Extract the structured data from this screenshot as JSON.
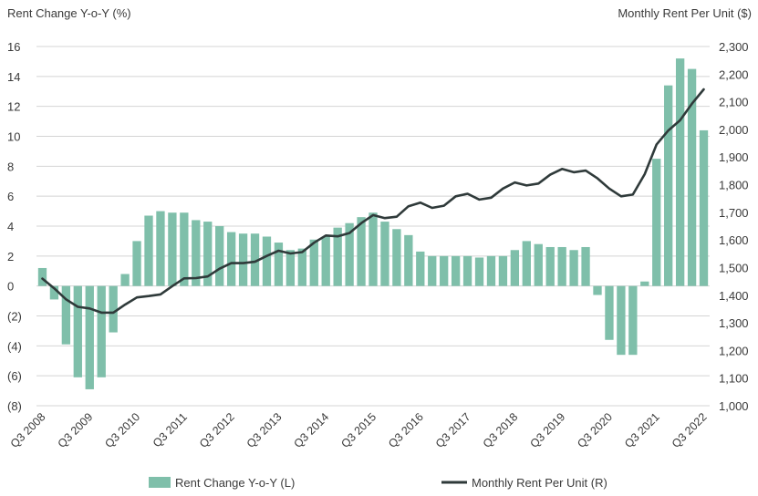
{
  "chart_data": {
    "type": "bar+line",
    "left_axis_title": "Rent Change Y-o-Y (%)",
    "right_axis_title": "Monthly Rent Per Unit ($)",
    "left_ylim": [
      -8,
      16
    ],
    "left_ticks": [
      16,
      14,
      12,
      10,
      8,
      6,
      4,
      2,
      0,
      -2,
      -4,
      -6,
      -8
    ],
    "left_tick_labels": [
      "16",
      "14",
      "12",
      "10",
      "8",
      "6",
      "4",
      "2",
      "0",
      "(2)",
      "(4)",
      "(6)",
      "(8)"
    ],
    "right_ylim": [
      1000,
      2300
    ],
    "right_ticks": [
      2300,
      2200,
      2100,
      2000,
      1900,
      1800,
      1700,
      1600,
      1500,
      1400,
      1300,
      1200,
      1100,
      1000
    ],
    "right_tick_labels": [
      "2,300",
      "2,200",
      "2,100",
      "2,000",
      "1,900",
      "1,800",
      "1,700",
      "1,600",
      "1,500",
      "1,400",
      "1,300",
      "1,200",
      "1,100",
      "1,000"
    ],
    "x_tick_labels": [
      "Q3 2008",
      "Q3 2009",
      "Q3 2010",
      "Q3 2011",
      "Q3 2012",
      "Q3 2013",
      "Q3 2014",
      "Q3 2015",
      "Q3 2016",
      "Q3 2017",
      "Q3 2018",
      "Q3 2019",
      "Q3 2020",
      "Q3 2021",
      "Q3 2022"
    ],
    "periods_per_label": 4,
    "series": [
      {
        "name": "Rent Change Y-o-Y (L)",
        "type": "bar",
        "axis": "left",
        "color": "#7fbfaa",
        "values": [
          1.2,
          -0.9,
          -3.9,
          -6.1,
          -6.9,
          -6.1,
          -3.1,
          0.8,
          3.0,
          4.7,
          5.0,
          4.9,
          4.9,
          4.4,
          4.3,
          4.0,
          3.6,
          3.5,
          3.5,
          3.3,
          2.9,
          2.4,
          2.5,
          3.1,
          3.3,
          3.9,
          4.2,
          4.6,
          4.9,
          4.3,
          3.8,
          3.4,
          2.3,
          2.0,
          2.0,
          2.0,
          2.0,
          1.9,
          2.0,
          2.0,
          2.4,
          3.0,
          2.8,
          2.6,
          2.6,
          2.4,
          2.6,
          -0.6,
          -3.6,
          -4.6,
          -4.6,
          0.3,
          8.5,
          13.4,
          15.2,
          14.5,
          10.4
        ]
      },
      {
        "name": "Monthly Rent Per Unit (R)",
        "type": "line",
        "axis": "right",
        "color": "#2f3a3a",
        "values": [
          1460,
          1425,
          1385,
          1358,
          1352,
          1337,
          1337,
          1366,
          1392,
          1397,
          1403,
          1433,
          1461,
          1462,
          1468,
          1496,
          1516,
          1516,
          1521,
          1542,
          1561,
          1551,
          1556,
          1590,
          1616,
          1613,
          1625,
          1661,
          1690,
          1679,
          1684,
          1722,
          1735,
          1716,
          1724,
          1758,
          1767,
          1746,
          1753,
          1786,
          1808,
          1797,
          1804,
          1836,
          1857,
          1845,
          1851,
          1823,
          1786,
          1758,
          1764,
          1838,
          1945,
          1996,
          2033,
          2093,
          2145
        ]
      }
    ]
  }
}
